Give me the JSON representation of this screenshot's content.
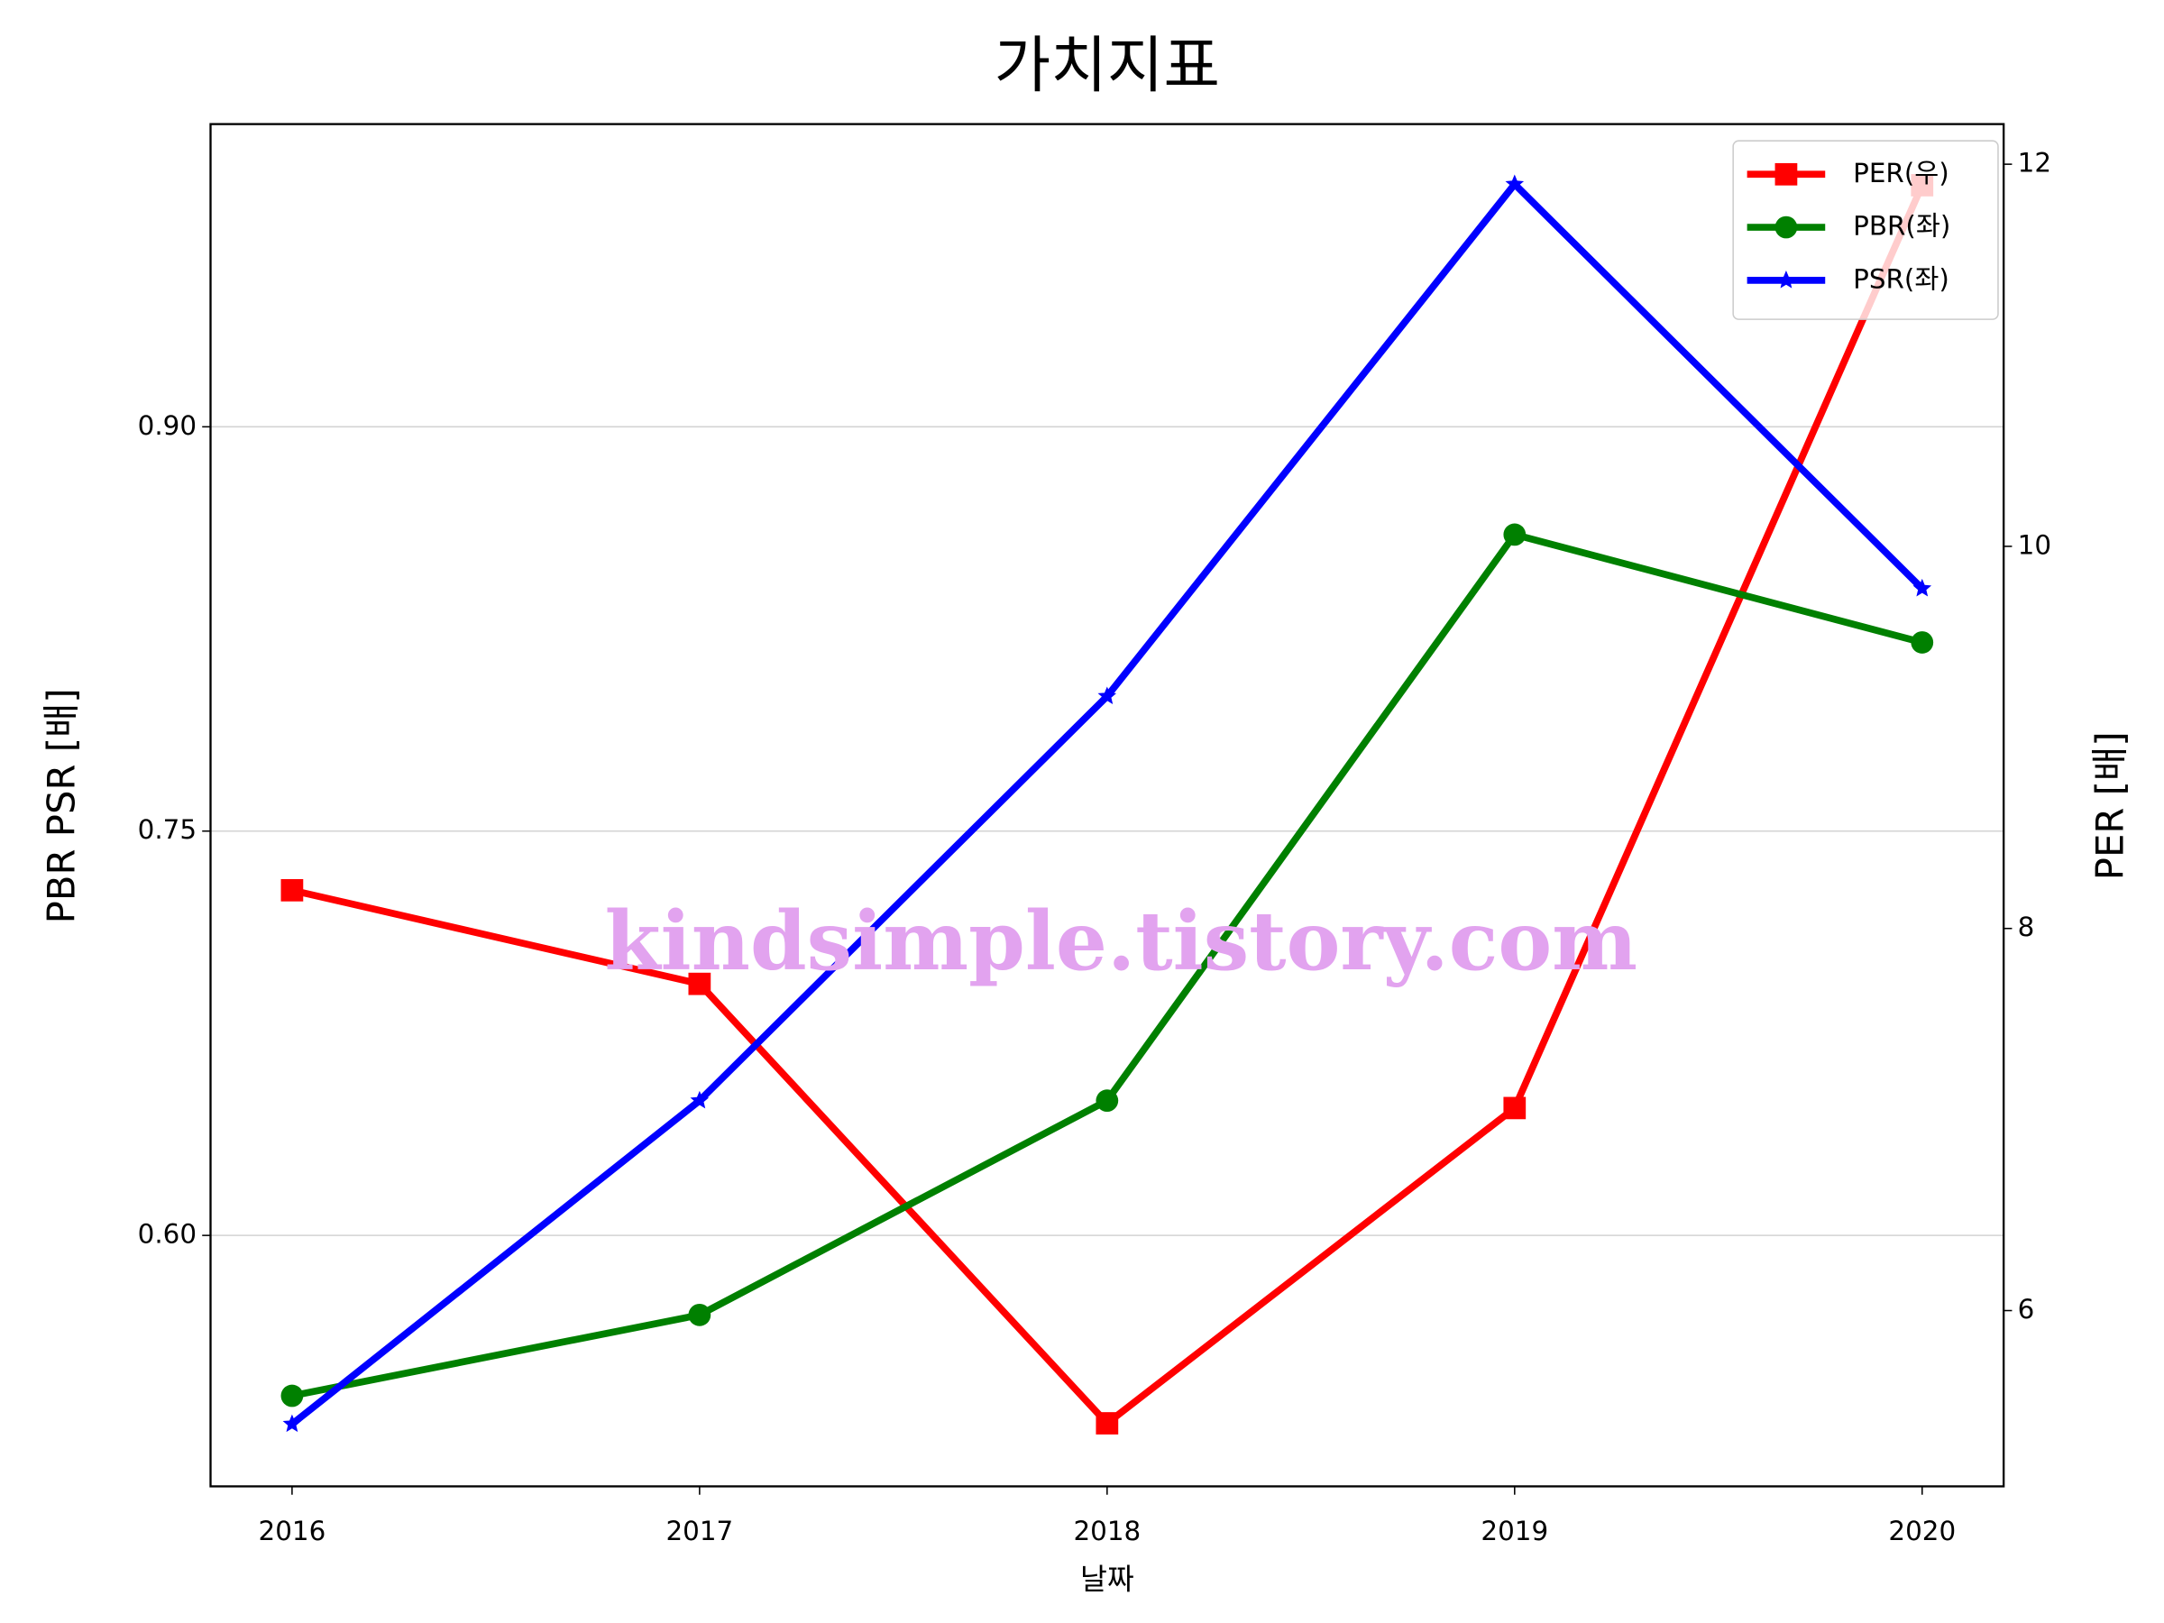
{
  "chart_data": {
    "type": "line",
    "title": "가치지표",
    "xlabel": "날짜",
    "ylabel": "PBR PSR [배]",
    "ylabel_color": "#008000",
    "y2label": "PER [배]",
    "y2label_color": "#ff0000",
    "x": [
      2016,
      2017,
      2018,
      2019,
      2020
    ],
    "xlim": [
      2015.8,
      2020.2
    ],
    "xticks": [
      2016,
      2017,
      2018,
      2019,
      2020
    ],
    "ylim": [
      0.5069,
      1.0123
    ],
    "yticks": [
      {
        "value": 0.6,
        "label": "0.60"
      },
      {
        "value": 0.75,
        "label": "0.75"
      },
      {
        "value": 0.9,
        "label": "0.90"
      }
    ],
    "y2lim": [
      5.08,
      12.21
    ],
    "y2ticks": [
      6,
      8,
      10,
      12
    ],
    "grid": true,
    "legend": "upper right",
    "annotation": "kindsimple.tistory.com",
    "series": [
      {
        "name": "PER(우)",
        "color": "#ff0000",
        "marker": "square",
        "axis": "y2",
        "values": [
          8.2,
          7.71,
          5.41,
          7.06,
          11.89
        ]
      },
      {
        "name": "PBR(좌)",
        "color": "#008000",
        "marker": "circle",
        "values": [
          0.5405,
          0.5705,
          0.65,
          0.86,
          0.82
        ]
      },
      {
        "name": "PSR(좌)",
        "color": "#0000ff",
        "marker": "star",
        "values": [
          0.53,
          0.65,
          0.8,
          0.99,
          0.84
        ]
      }
    ]
  }
}
